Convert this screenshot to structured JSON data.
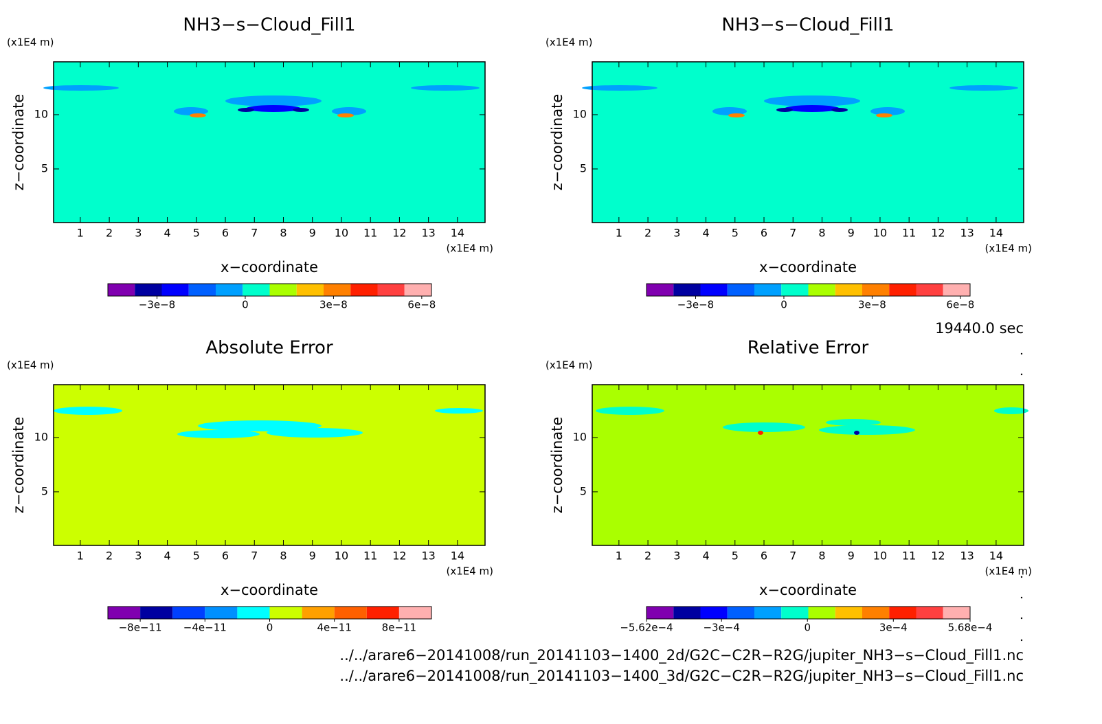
{
  "chart_data": [
    {
      "type": "contour",
      "title": "NH3−s−Cloud_Fill1",
      "xlabel": "x−coordinate",
      "ylabel": "z−coordinate",
      "x_unit": "(x1E4 m)",
      "y_unit": "(x1E4 m)",
      "field_color": "#00ffcc",
      "xlim": [
        0.08,
        14.95
      ],
      "ylim": [
        0.06,
        14.87
      ],
      "xticks": [
        1,
        2,
        3,
        4,
        5,
        6,
        7,
        8,
        9,
        10,
        11,
        12,
        13,
        14
      ],
      "yticks": [
        5,
        10
      ],
      "colorbar": {
        "lim": [
          -4.67e-08,
          6.33e-08
        ],
        "colors": [
          "#8000b0",
          "#0000a0",
          "#0000ff",
          "#0060ff",
          "#00a0ff",
          "#00ffcc",
          "#aaff00",
          "#ffc000",
          "#ff8000",
          "#ff2000",
          "#ff4040",
          "#ffb0b0"
        ],
        "ticks": [
          {
            "value": -3e-08,
            "label": "−3e−8"
          },
          0,
          {
            "value": 3e-08,
            "label": "3e−8"
          },
          {
            "value": 6e-08,
            "label": "6e−8"
          }
        ]
      }
    },
    {
      "type": "contour",
      "title": "NH3−s−Cloud_Fill1",
      "xlabel": "x−coordinate",
      "ylabel": "z−coordinate",
      "x_unit": "(x1E4 m)",
      "y_unit": "(x1E4 m)",
      "field_color": "#00ffcc",
      "xlim": [
        0.08,
        14.95
      ],
      "ylim": [
        0.06,
        14.87
      ],
      "xticks": [
        1,
        2,
        3,
        4,
        5,
        6,
        7,
        8,
        9,
        10,
        11,
        12,
        13,
        14
      ],
      "yticks": [
        5,
        10
      ],
      "colorbar": {
        "lim": [
          -4.67e-08,
          6.33e-08
        ],
        "colors": [
          "#8000b0",
          "#0000a0",
          "#0000ff",
          "#0060ff",
          "#00a0ff",
          "#00ffcc",
          "#aaff00",
          "#ffc000",
          "#ff8000",
          "#ff2000",
          "#ff4040",
          "#ffb0b0"
        ],
        "ticks": [
          {
            "value": -3e-08,
            "label": "−3e−8"
          },
          0,
          {
            "value": 3e-08,
            "label": "3e−8"
          },
          {
            "value": 6e-08,
            "label": "6e−8"
          }
        ]
      }
    },
    {
      "type": "contour",
      "title": "Absolute Error",
      "xlabel": "x−coordinate",
      "ylabel": "z−coordinate",
      "x_unit": "(x1E4 m)",
      "y_unit": "(x1E4 m)",
      "field_color": "#ccff00",
      "xlim": [
        0.08,
        14.95
      ],
      "ylim": [
        0.06,
        14.87
      ],
      "xticks": [
        1,
        2,
        3,
        4,
        5,
        6,
        7,
        8,
        9,
        10,
        11,
        12,
        13,
        14
      ],
      "yticks": [
        5,
        10
      ],
      "colorbar": {
        "lim": [
          -1e-10,
          1e-10
        ],
        "colors": [
          "#8000b0",
          "#0000a0",
          "#0040ff",
          "#0090ff",
          "#00ffff",
          "#ccff00",
          "#ffa000",
          "#ff6000",
          "#ff2000",
          "#ffb0b0"
        ],
        "ticks": [
          {
            "value": -8e-11,
            "label": "−8e−11"
          },
          {
            "value": -4e-11,
            "label": "−4e−11"
          },
          0,
          {
            "value": 4e-11,
            "label": "4e−11"
          },
          {
            "value": 8e-11,
            "label": "8e−11"
          }
        ]
      }
    },
    {
      "type": "contour",
      "title": "Relative Error",
      "xlabel": "x−coordinate",
      "ylabel": "z−coordinate",
      "x_unit": "(x1E4 m)",
      "y_unit": "(x1E4 m)",
      "field_color": "#aaff00",
      "xlim": [
        0.08,
        14.95
      ],
      "ylim": [
        0.06,
        14.87
      ],
      "xticks": [
        1,
        2,
        3,
        4,
        5,
        6,
        7,
        8,
        9,
        10,
        11,
        12,
        13,
        14
      ],
      "yticks": [
        5,
        10
      ],
      "colorbar": {
        "lim": [
          -0.000562,
          0.000568
        ],
        "colors": [
          "#8000b0",
          "#0000a0",
          "#0000ff",
          "#0060ff",
          "#00a0ff",
          "#00ffcc",
          "#aaff00",
          "#ffc000",
          "#ff8000",
          "#ff2000",
          "#ff4040",
          "#ffb0b0"
        ],
        "ticks": [
          {
            "value": -0.000562,
            "label": "−5.62e−4"
          },
          {
            "value": -0.0003,
            "label": "−3e−4"
          },
          0,
          {
            "value": 0.0003,
            "label": "3e−4"
          },
          {
            "value": 0.000568,
            "label": "5.68e−4"
          }
        ]
      }
    }
  ],
  "time_label": "19440.0 sec",
  "files": [
    "../../arare6−20141008/run_20141103−1400_2d/G2C−C2R−R2G/jupiter_NH3−s−Cloud_Fill1.nc",
    "../../arare6−20141008/run_20141103−1400_3d/G2C−C2R−R2G/jupiter_NH3−s−Cloud_Fill1.nc"
  ]
}
